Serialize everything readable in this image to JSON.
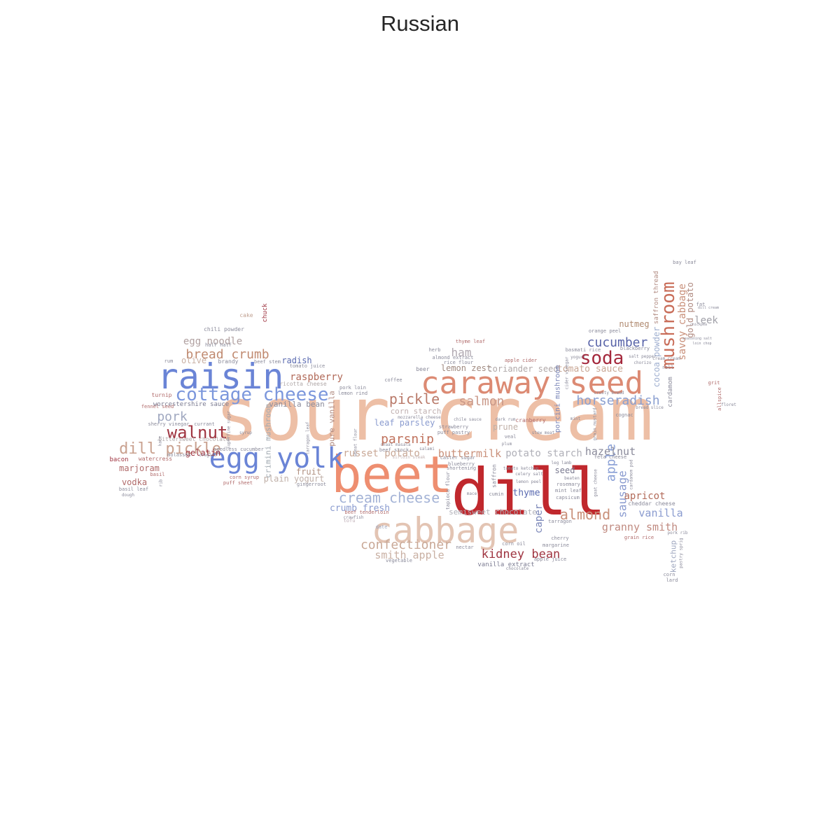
{
  "title": "Russian",
  "words": [
    {
      "text": "sour cream",
      "color": "#edbfa6"
    },
    {
      "text": "dill",
      "color": "#c0282d"
    },
    {
      "text": "beet",
      "color": "#ee8e70"
    },
    {
      "text": "cabbage",
      "color": "#e3c4b3"
    },
    {
      "text": "caraway seed",
      "color": "#dc8a73"
    },
    {
      "text": "raisin",
      "color": "#6a84d6"
    },
    {
      "text": "egg yolk",
      "color": "#6a84d6"
    },
    {
      "text": "cottage cheese",
      "color": "#7c97dc"
    },
    {
      "text": "mushroom",
      "color": "#c96e5a"
    },
    {
      "text": "soda",
      "color": "#a4283c"
    },
    {
      "text": "walnut",
      "color": "#9f3440"
    },
    {
      "text": "dill pickle",
      "color": "#c9a18f"
    },
    {
      "text": "bread crumb",
      "color": "#c08a70"
    },
    {
      "text": "cucumber",
      "color": "#5863a8"
    },
    {
      "text": "horseradish",
      "color": "#8a9fd0"
    },
    {
      "text": "pickle",
      "color": "#b97a6a"
    },
    {
      "text": "salmon",
      "color": "#c99787"
    },
    {
      "text": "parsnip",
      "color": "#c0735e"
    },
    {
      "text": "almond",
      "color": "#c9907a"
    },
    {
      "text": "cream cheese",
      "color": "#a4b3d6"
    },
    {
      "text": "kidney bean",
      "color": "#9f3440"
    },
    {
      "text": "confectioner",
      "color": "#c9a896"
    },
    {
      "text": "buttermilk",
      "color": "#c9907a"
    },
    {
      "text": "apple",
      "color": "#8aa0d6"
    },
    {
      "text": "sausage",
      "color": "#8a9bcf"
    },
    {
      "text": "granny smith",
      "color": "#c08a80"
    },
    {
      "text": "smith apple",
      "color": "#c9b0a3"
    },
    {
      "text": "vanilla",
      "color": "#8a9bcf"
    },
    {
      "text": "apricot",
      "color": "#b26b5a"
    },
    {
      "text": "hazelnut",
      "color": "#8a8a9a"
    },
    {
      "text": "potato starch",
      "color": "#b0b0b8"
    },
    {
      "text": "russet potato",
      "color": "#c9a896"
    },
    {
      "text": "crumb fresh",
      "color": "#8a9bcf"
    },
    {
      "text": "pork",
      "color": "#a0a8c0"
    },
    {
      "text": "raspberry",
      "color": "#b26b5a"
    },
    {
      "text": "egg noodle",
      "color": "#b0a0a0"
    },
    {
      "text": "savoy cabbage",
      "color": "#c9907a"
    },
    {
      "text": "gold potato",
      "color": "#b08a80"
    },
    {
      "text": "leek",
      "color": "#a0a0a8"
    },
    {
      "text": "tomato sauce",
      "color": "#c9a896"
    },
    {
      "text": "ham",
      "color": "#b0a8b0"
    },
    {
      "text": "lemon zest",
      "color": "#a08a80"
    },
    {
      "text": "coriander seed",
      "color": "#b0a8a8"
    },
    {
      "text": "nutmeg",
      "color": "#b08a70"
    },
    {
      "text": "caper",
      "color": "#7a86b8"
    },
    {
      "text": "thyme",
      "color": "#5a6ab0"
    },
    {
      "text": "seed",
      "color": "#7a7a90"
    },
    {
      "text": "cocoa powder",
      "color": "#a0b0d0"
    },
    {
      "text": "gelatin",
      "color": "#9f3440"
    },
    {
      "text": "fruit",
      "color": "#b09080"
    },
    {
      "text": "plain yogurt",
      "color": "#c0b0a8"
    },
    {
      "text": "olive",
      "color": "#c9b0a3"
    },
    {
      "text": "radish",
      "color": "#5a6ab0"
    },
    {
      "text": "marjoram",
      "color": "#b06a6a"
    },
    {
      "text": "vodka",
      "color": "#b06a6a"
    },
    {
      "text": "leaf parsley",
      "color": "#8a9bcf"
    },
    {
      "text": "prune",
      "color": "#c0b0a8"
    },
    {
      "text": "semisweet chocolate",
      "color": "#b0b0b8"
    },
    {
      "text": "ketchup",
      "color": "#a0a8c0"
    },
    {
      "text": "corn starch",
      "color": "#c0b0b0"
    },
    {
      "text": "worcestershire sauce",
      "color": "#7a7a90"
    },
    {
      "text": "vanilla bean",
      "color": "#8a8a9a"
    },
    {
      "text": "pure vanilla",
      "color": "#b08a80"
    },
    {
      "text": "crimini mushroom",
      "color": "#a0a8b0"
    },
    {
      "text": "porcini mushroom",
      "color": "#7a86b8"
    },
    {
      "text": "chuck",
      "color": "#9f3440"
    },
    {
      "text": "saffron thread",
      "color": "#b08a80"
    },
    {
      "text": "vanilla extract",
      "color": "#7a7a90"
    },
    {
      "text": "cardamom",
      "color": "#8a8a9a"
    },
    {
      "text": "chili powder",
      "color": "#8a8a9a"
    },
    {
      "text": "cake",
      "color": "#c0a090"
    },
    {
      "text": "half half",
      "color": "#8a8a9a"
    },
    {
      "text": "brandy",
      "color": "#8a8a9a"
    },
    {
      "text": "beef stem",
      "color": "#8a8a9a"
    },
    {
      "text": "tomato juice",
      "color": "#8a8a9a"
    },
    {
      "text": "rum",
      "color": "#8a8a9a"
    },
    {
      "text": "ricotta cheese",
      "color": "#b0a8a8"
    },
    {
      "text": "pork loin",
      "color": "#8a8a9a"
    },
    {
      "text": "lemon rind",
      "color": "#8a8a9a"
    },
    {
      "text": "coffee",
      "color": "#8a8a9a"
    },
    {
      "text": "turnip",
      "color": "#b06a6a"
    },
    {
      "text": "fennel seed",
      "color": "#b06a6a"
    },
    {
      "text": "sherry vinegar",
      "color": "#8a8a9a"
    },
    {
      "text": "currant",
      "color": "#8a8a9a"
    },
    {
      "text": "bittersweet chocolate",
      "color": "#b0a8a8"
    },
    {
      "text": "bacon",
      "color": "#9f3440"
    },
    {
      "text": "watercress",
      "color": "#b06a6a"
    },
    {
      "text": "basil",
      "color": "#b06a6a"
    },
    {
      "text": "basil leaf",
      "color": "#8a8a9a"
    },
    {
      "text": "dough",
      "color": "#8a8a9a"
    },
    {
      "text": "corn syrup",
      "color": "#b06a6a"
    },
    {
      "text": "puff sheet",
      "color": "#b06a6a"
    },
    {
      "text": "gingerroot",
      "color": "#8a8a9a"
    },
    {
      "text": "beef tenderloin",
      "color": "#b06a6a"
    },
    {
      "text": "tofu",
      "color": "#c0b0b8"
    },
    {
      "text": "date",
      "color": "#a0a8c0"
    },
    {
      "text": "vegetable",
      "color": "#8a8a9a"
    },
    {
      "text": "sirloin steak",
      "color": "#c0b0b0"
    },
    {
      "text": "salami",
      "color": "#8a8a9a"
    },
    {
      "text": "chaat masala",
      "color": "#8a8a9a"
    },
    {
      "text": "beef stock",
      "color": "#8a8a9a"
    },
    {
      "text": "caster sugar",
      "color": "#8a8a9a"
    },
    {
      "text": "blueberry",
      "color": "#8a8a9a"
    },
    {
      "text": "shortening",
      "color": "#8a8a9a"
    },
    {
      "text": "strawberry",
      "color": "#8a8a9a"
    },
    {
      "text": "puff pastry",
      "color": "#8a8a9a"
    },
    {
      "text": "chile sauce",
      "color": "#8a8a9a"
    },
    {
      "text": "mozzarella cheese",
      "color": "#8a8a9a"
    },
    {
      "text": "cranberry",
      "color": "#b06a6a"
    },
    {
      "text": "dark rum",
      "color": "#8a8a9a"
    },
    {
      "text": "veal",
      "color": "#8a8a9a"
    },
    {
      "text": "plum",
      "color": "#8a8a9a"
    },
    {
      "text": "stew meat",
      "color": "#8a8a9a"
    },
    {
      "text": "mint",
      "color": "#8a8a9a"
    },
    {
      "text": "cider vinegar",
      "color": "#8a8a9a"
    },
    {
      "text": "yogurt",
      "color": "#8a8a9a"
    },
    {
      "text": "basmati rice",
      "color": "#8a8a9a"
    },
    {
      "text": "blackberry",
      "color": "#8a8a9a"
    },
    {
      "text": "orange peel",
      "color": "#8a8a9a"
    },
    {
      "text": "salt pepper",
      "color": "#8a8a9a"
    },
    {
      "text": "chorizo",
      "color": "#8a8a9a"
    },
    {
      "text": "roll",
      "color": "#8a8a9a"
    },
    {
      "text": "cream cream",
      "color": "#8a8a9a"
    },
    {
      "text": "thyme leaf",
      "color": "#b06a6a"
    },
    {
      "text": "herb",
      "color": "#8a8a9a"
    },
    {
      "text": "almond extract",
      "color": "#8a8a9a"
    },
    {
      "text": "rice flour",
      "color": "#8a8a9a"
    },
    {
      "text": "apple cider",
      "color": "#b06a6a"
    },
    {
      "text": "beer",
      "color": "#8a8a9a"
    },
    {
      "text": "cognac",
      "color": "#8a8a9a"
    },
    {
      "text": "bread slice",
      "color": "#8a8a9a"
    },
    {
      "text": "crusty bread",
      "color": "#8a8a9a"
    },
    {
      "text": "grain mustard",
      "color": "#8a8a9a"
    },
    {
      "text": "feta cheese",
      "color": "#8a8a9a"
    },
    {
      "text": "tomato ketchup",
      "color": "#8a8a9a"
    },
    {
      "text": "celery salt",
      "color": "#8a8a9a"
    },
    {
      "text": "leg lamb",
      "color": "#8a8a9a"
    },
    {
      "text": "lemon peel",
      "color": "#8a8a9a"
    },
    {
      "text": "mint leaf",
      "color": "#8a8a9a"
    },
    {
      "text": "rosemary",
      "color": "#8a8a9a"
    },
    {
      "text": "beaten",
      "color": "#8a8a9a"
    },
    {
      "text": "capsicum",
      "color": "#8a8a9a"
    },
    {
      "text": "tarragon",
      "color": "#8a8a9a"
    },
    {
      "text": "cherry",
      "color": "#8a8a9a"
    },
    {
      "text": "margarine",
      "color": "#8a8a9a"
    },
    {
      "text": "corn oil",
      "color": "#8a8a9a"
    },
    {
      "text": "nectar",
      "color": "#8a8a9a"
    },
    {
      "text": "apple juice",
      "color": "#8a8a9a"
    },
    {
      "text": "chocolate",
      "color": "#8a8a9a"
    },
    {
      "text": "mace",
      "color": "#8a8a9a"
    },
    {
      "text": "cumin",
      "color": "#8a8a9a"
    },
    {
      "text": "saffron",
      "color": "#8a8a9a"
    },
    {
      "text": "tapioca flour",
      "color": "#8a8a9a"
    },
    {
      "text": "cheddar cheese",
      "color": "#8a8a9a"
    },
    {
      "text": "grain rice",
      "color": "#b06a6a"
    },
    {
      "text": "pork rib",
      "color": "#8a8a9a"
    },
    {
      "text": "pastry sprig",
      "color": "#8a8a9a"
    },
    {
      "text": "corn",
      "color": "#8a8a9a"
    },
    {
      "text": "lard",
      "color": "#8a8a9a"
    },
    {
      "text": "goat cheese",
      "color": "#8a8a9a"
    },
    {
      "text": "cardamom pod",
      "color": "#8a8a9a"
    },
    {
      "text": "kale",
      "color": "#8a8a9a"
    },
    {
      "text": "rib",
      "color": "#8a8a9a"
    },
    {
      "text": "molasses",
      "color": "#8a8a9a"
    },
    {
      "text": "oregano",
      "color": "#8a8a9a"
    },
    {
      "text": "seedless cucumber",
      "color": "#8a8a9a"
    },
    {
      "text": "superfine sugar",
      "color": "#8a8a9a"
    },
    {
      "text": "syrup",
      "color": "#8a8a9a"
    },
    {
      "text": "tarragon leaf",
      "color": "#8a8a9a"
    },
    {
      "text": "wheat flour",
      "color": "#8a8a9a"
    },
    {
      "text": "crawfish",
      "color": "#8a8a9a"
    },
    {
      "text": "bay leaf",
      "color": "#8a8a9a"
    },
    {
      "text": "fat",
      "color": "#8a8a9a"
    },
    {
      "text": "dill cream",
      "color": "#8a8a9a"
    },
    {
      "text": "chickpea",
      "color": "#8a8a9a"
    },
    {
      "text": "seasoning salt",
      "color": "#8a8a9a"
    },
    {
      "text": "loin chop",
      "color": "#8a8a9a"
    },
    {
      "text": "grit",
      "color": "#b06a6a"
    },
    {
      "text": "allspice",
      "color": "#b06a6a"
    },
    {
      "text": "floret",
      "color": "#8a8a9a"
    }
  ]
}
